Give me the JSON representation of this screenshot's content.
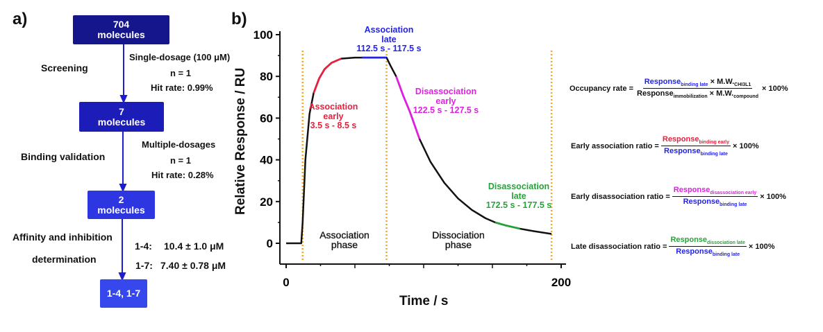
{
  "panel_a": {
    "label": "a)",
    "boxes": [
      {
        "line1": "704",
        "line2": "molecules"
      },
      {
        "line1": "7",
        "line2": "molecules"
      },
      {
        "line1": "2",
        "line2": "molecules"
      },
      {
        "line1": "1-4, 1-7"
      }
    ],
    "steps": [
      {
        "name": "Screening",
        "details": [
          "Single-dosage (100 μM)",
          "n = 1",
          "Hit rate: 0.99%"
        ]
      },
      {
        "name": "Binding validation",
        "details": [
          "Multiple-dosages",
          "n = 1",
          "Hit rate: 0.28%"
        ]
      },
      {
        "name_line1": "Affinity and inhibition",
        "name_line2": "determination",
        "results": [
          {
            "id": "1-4:",
            "value": "10.4 ± 1.0 μM"
          },
          {
            "id": "1-7:",
            "value": "7.40 ± 0.78 μM"
          }
        ]
      }
    ],
    "colors": [
      "#15158c",
      "#1c1cb8",
      "#2d36e0",
      "#3647ee"
    ]
  },
  "chart_data": {
    "type": "line",
    "label": "b)",
    "xlabel": "Time / s",
    "ylabel": "Relative Response / RU",
    "xlim": [
      0,
      200
    ],
    "ylim": [
      0,
      100
    ],
    "xticks": [
      0,
      200
    ],
    "xticks_minor": [
      25,
      50,
      75,
      100,
      125,
      150,
      175
    ],
    "yticks": [
      0,
      20,
      40,
      60,
      80,
      100
    ],
    "curve": [
      [
        0,
        0
      ],
      [
        11,
        0
      ],
      [
        12,
        10
      ],
      [
        14,
        40
      ],
      [
        17,
        62
      ],
      [
        20,
        72
      ],
      [
        24,
        79
      ],
      [
        28,
        83.5
      ],
      [
        33,
        86.5
      ],
      [
        40,
        88.5
      ],
      [
        50,
        89
      ],
      [
        73,
        89
      ],
      [
        76,
        85
      ],
      [
        80,
        80
      ],
      [
        85,
        71
      ],
      [
        90,
        63
      ],
      [
        97,
        50
      ],
      [
        105,
        39
      ],
      [
        115,
        29
      ],
      [
        125,
        21.5
      ],
      [
        135,
        16
      ],
      [
        145,
        12
      ],
      [
        152,
        10
      ],
      [
        160,
        8.5
      ],
      [
        170,
        7
      ],
      [
        180,
        5.8
      ],
      [
        193,
        4.5
      ]
    ],
    "highlights": [
      {
        "from": 20,
        "to": 40,
        "color": "#e8203c",
        "title1": "Association",
        "title2": "early",
        "range": "3.5 s - 8.5 s"
      },
      {
        "from": 55,
        "to": 73,
        "color": "#2323e6",
        "title1": "Association",
        "title2": "late",
        "range": "112.5 s - 117.5 s"
      },
      {
        "from": 80,
        "to": 97,
        "color": "#e020e0",
        "title1": "Disassociation",
        "title2": "early",
        "range": "122.5 s - 127.5 s"
      },
      {
        "from": 152,
        "to": 170,
        "color": "#27a23a",
        "title1": "Disassociation",
        "title2": "late",
        "range": "172.5 s - 177.5 s"
      }
    ],
    "phase_lines": [
      12,
      73,
      193
    ],
    "phase_line_color": "#f5a623",
    "phases": [
      {
        "line1": "Association",
        "line2": "phase"
      },
      {
        "line1": "Dissociation",
        "line2": "phase"
      }
    ]
  },
  "formulas": [
    {
      "lhs": "Occupancy rate =",
      "num": "Response",
      "num_sub": "binding late",
      "num_tail": "× M.W.",
      "num_tail_sub": "CHI3L1",
      "den": "Response",
      "den_sub": "immobilization",
      "den_tail": "× M.W.",
      "den_tail_sub": "compound",
      "suffix": "× 100%"
    },
    {
      "lhs": "Early association ratio =",
      "num": "Response",
      "num_sub": "binding early",
      "den": "Response",
      "den_sub": "binding late",
      "suffix": "× 100%"
    },
    {
      "lhs": "Early disassociation ratio =",
      "num": "Response",
      "num_sub": "disassociation early",
      "den": "Response",
      "den_sub": "binding late",
      "suffix": "× 100%"
    },
    {
      "lhs": "Late disassociation ratio =",
      "num": "Response",
      "num_sub": "dissociation late",
      "den": "Response",
      "den_sub": "binding late",
      "suffix": "× 100%"
    }
  ]
}
